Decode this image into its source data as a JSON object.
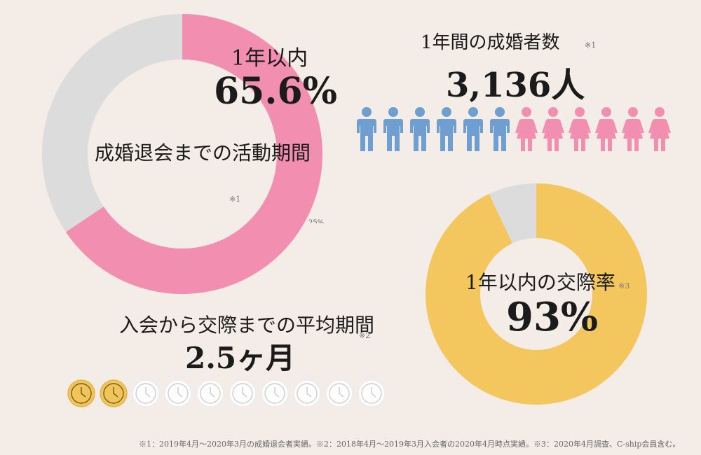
{
  "colors": {
    "background": "#f3ece7",
    "pink": "#f28fb1",
    "gray": "#dcdcdc",
    "blue": "#6f9fd1",
    "yellow": "#f3c75d",
    "clock_active": "#f0c65c",
    "clock_inactive": "#ffffff"
  },
  "chart_data": [
    {
      "type": "pie",
      "title": "成婚退会までの活動期間",
      "labels": [
        "1年以内",
        ""
      ],
      "values": [
        65.6,
        34.4
      ],
      "value_label": "65.6%",
      "note": "※1",
      "cut_label": "25%",
      "colors": [
        "#f28fb1",
        "#dcdcdc"
      ]
    },
    {
      "type": "pie",
      "title": "1年以内の交際率",
      "labels": [
        "1年以内の交際率",
        ""
      ],
      "values": [
        93,
        7
      ],
      "value_label": "93%",
      "note": "※3",
      "colors": [
        "#f3c75d",
        "#dcdcdc"
      ]
    }
  ],
  "stats": {
    "marriage": {
      "title": "1年間の成婚者数",
      "note": "※1",
      "value": "3,136人",
      "icons": [
        "man-icon",
        "man-icon",
        "man-icon",
        "man-icon",
        "man-icon",
        "man-icon",
        "woman-icon",
        "woman-icon",
        "woman-icon",
        "woman-icon",
        "woman-icon",
        "woman-icon"
      ]
    },
    "dating": {
      "title": "入会から交際までの平均期間",
      "note": "※2",
      "value": "2.5ヶ月",
      "clocks_total": 10,
      "clocks_active": 2
    }
  },
  "footnote": "※1：2019年4月～2020年3月の成婚退会者実績。※2：2018年4月～2019年3月入会者の2020年4月時点実績。※3：2020年4月調査、C-ship会員含む。"
}
